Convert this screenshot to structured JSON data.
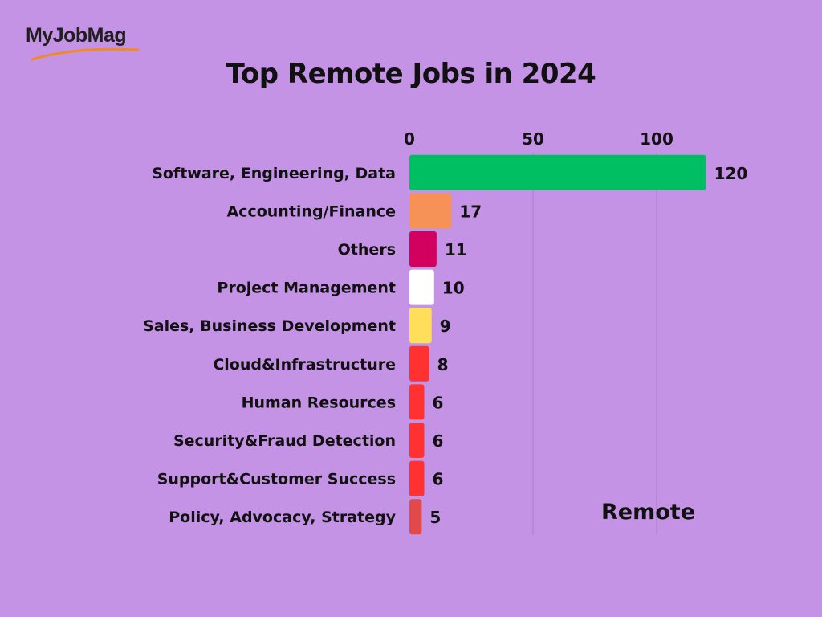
{
  "brand": {
    "logo_text": "MyJobMag"
  },
  "chart_data": {
    "type": "bar",
    "orientation": "horizontal",
    "title": "Top Remote Jobs in 2024",
    "categories": [
      "Software, Engineering, Data",
      "Accounting/Finance",
      "Others",
      "Project Management",
      "Sales, Business Development",
      "Cloud&Infrastructure",
      "Human Resources",
      "Security&Fraud Detection",
      "Support&Customer Success",
      "Policy, Advocacy, Strategy"
    ],
    "series": [
      {
        "name": "Remote",
        "values": [
          120,
          17,
          11,
          10,
          9,
          8,
          6,
          6,
          6,
          5
        ]
      }
    ],
    "bar_colors": [
      "#00bf63",
      "#f79256",
      "#d2005e",
      "#ffffff",
      "#ffde59",
      "#ff3131",
      "#ff3131",
      "#ff3131",
      "#ff3131",
      "#e04a4a"
    ],
    "xticks": [
      0,
      50,
      100
    ],
    "xlim": [
      0,
      120
    ],
    "x_axis_position": "top",
    "grid": true,
    "xlabel": "",
    "ylabel": ""
  }
}
